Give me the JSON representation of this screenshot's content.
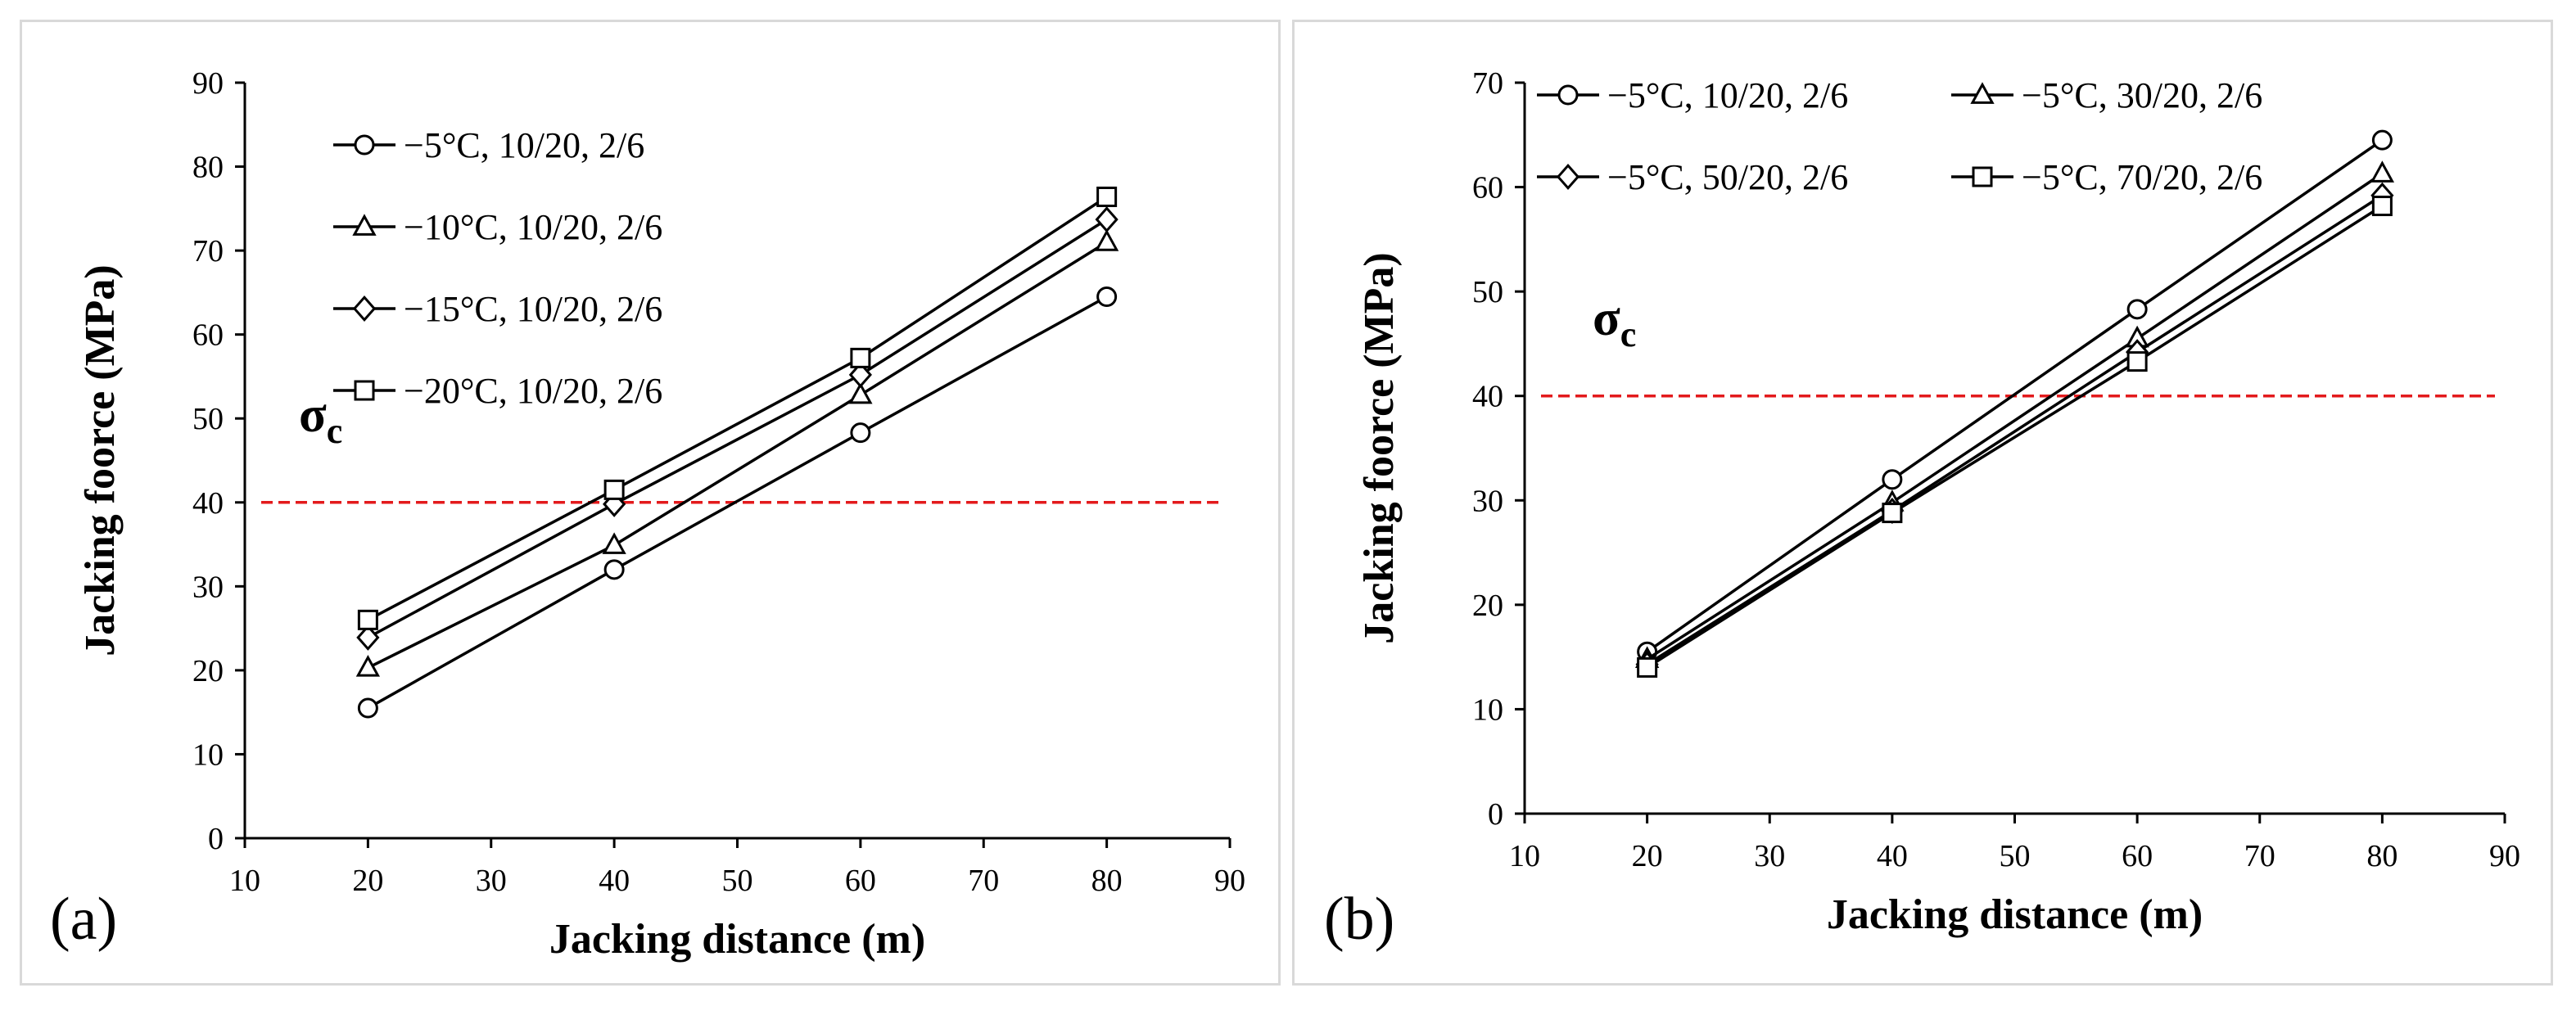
{
  "chart_data": [
    {
      "panel_label": "(a)",
      "type": "line",
      "xlabel": "Jacking distance (m)",
      "ylabel": "Jacking foorce (MPa)",
      "xlim": [
        10,
        90
      ],
      "ylim": [
        0,
        90
      ],
      "xticks": [
        10,
        20,
        30,
        40,
        50,
        60,
        70,
        80,
        90
      ],
      "yticks": [
        0,
        10,
        20,
        30,
        40,
        50,
        60,
        70,
        80,
        90
      ],
      "grid": false,
      "legend_position": "top-left",
      "x": [
        20,
        40,
        60,
        80
      ],
      "series": [
        {
          "name": "−5°C, 10/20, 2/6",
          "marker": "circle",
          "values": [
            15.5,
            32,
            48.3,
            64.5
          ]
        },
        {
          "name": "−10°C, 10/20, 2/6",
          "marker": "triangle",
          "values": [
            20.3,
            34.9,
            52.8,
            71
          ]
        },
        {
          "name": "−15°C, 10/20, 2/6",
          "marker": "diamond",
          "values": [
            23.9,
            39.8,
            55.2,
            73.7
          ]
        },
        {
          "name": "−20°C, 10/20, 2/6",
          "marker": "square",
          "values": [
            26,
            41.5,
            57.2,
            76.4
          ]
        }
      ],
      "reference_line": {
        "y": 40,
        "color": "#e31a1c",
        "style": "dashed",
        "label": "σ",
        "label_sub": "c"
      }
    },
    {
      "panel_label": "(b)",
      "type": "line",
      "xlabel": "Jacking distance (m)",
      "ylabel": "Jacking foorce (MPa)",
      "xlim": [
        10,
        90
      ],
      "ylim": [
        0,
        70
      ],
      "xticks": [
        10,
        20,
        30,
        40,
        50,
        60,
        70,
        80,
        90
      ],
      "yticks": [
        0,
        10,
        20,
        30,
        40,
        50,
        60,
        70
      ],
      "grid": false,
      "legend_position": "top",
      "x": [
        20,
        40,
        60,
        80
      ],
      "series": [
        {
          "name": "−5°C, 10/20, 2/6",
          "marker": "circle",
          "values": [
            15.5,
            32,
            48.3,
            64.5
          ]
        },
        {
          "name": "−5°C, 30/20, 2/6",
          "marker": "triangle",
          "values": [
            14.8,
            29.8,
            45.5,
            61.3
          ]
        },
        {
          "name": "−5°C, 50/20, 2/6",
          "marker": "diamond",
          "values": [
            14.3,
            29,
            44.2,
            59.2
          ]
        },
        {
          "name": "−5°C, 70/20, 2/6",
          "marker": "square",
          "values": [
            14,
            28.8,
            43.3,
            58.2
          ]
        }
      ],
      "reference_line": {
        "y": 40,
        "color": "#e31a1c",
        "style": "dashed",
        "label": "σ",
        "label_sub": "c"
      }
    }
  ]
}
